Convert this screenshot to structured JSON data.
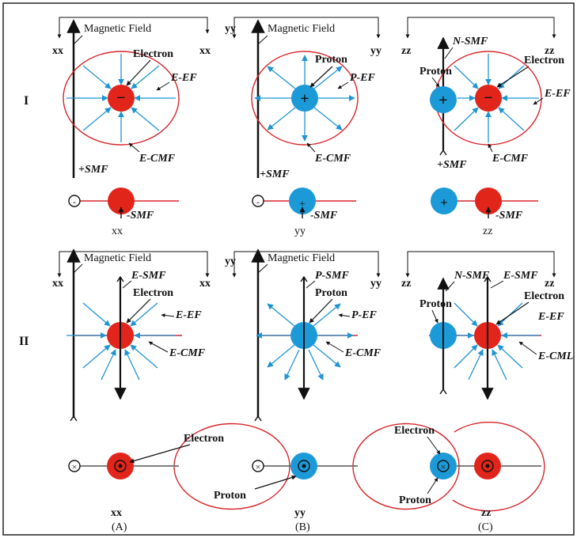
{
  "row_labels": {
    "row1": "I",
    "row2": "II"
  },
  "column_captions": {
    "a": "(A)",
    "b": "(B)",
    "c": "(C)"
  },
  "labels": {
    "magnetic_field": "Magnetic Field",
    "xx": "xx",
    "yy": "yy",
    "zz": "zz",
    "electron": "Electron",
    "proton": "Proton",
    "e_ef": "E-EF",
    "p_ef": "P-EF",
    "e_cmf": "E-CMF",
    "plus_smf": "+SMF",
    "minus_smf": "-SMF",
    "n_smf": "N-SMF",
    "e_smf": "E-SMF",
    "p_smf": "P-SMF",
    "e_cml": "E-CML",
    "electro_cut": "Electro"
  },
  "symbols": {
    "minus": "−",
    "plus": "+",
    "dot_small": "-",
    "cross": "×"
  },
  "colors": {
    "electron": "#e1251b",
    "proton": "#1c9ad8",
    "field_arrow": "#1f94d2",
    "circle": "#d7262c",
    "axis": "#111111",
    "border": "#222222"
  }
}
